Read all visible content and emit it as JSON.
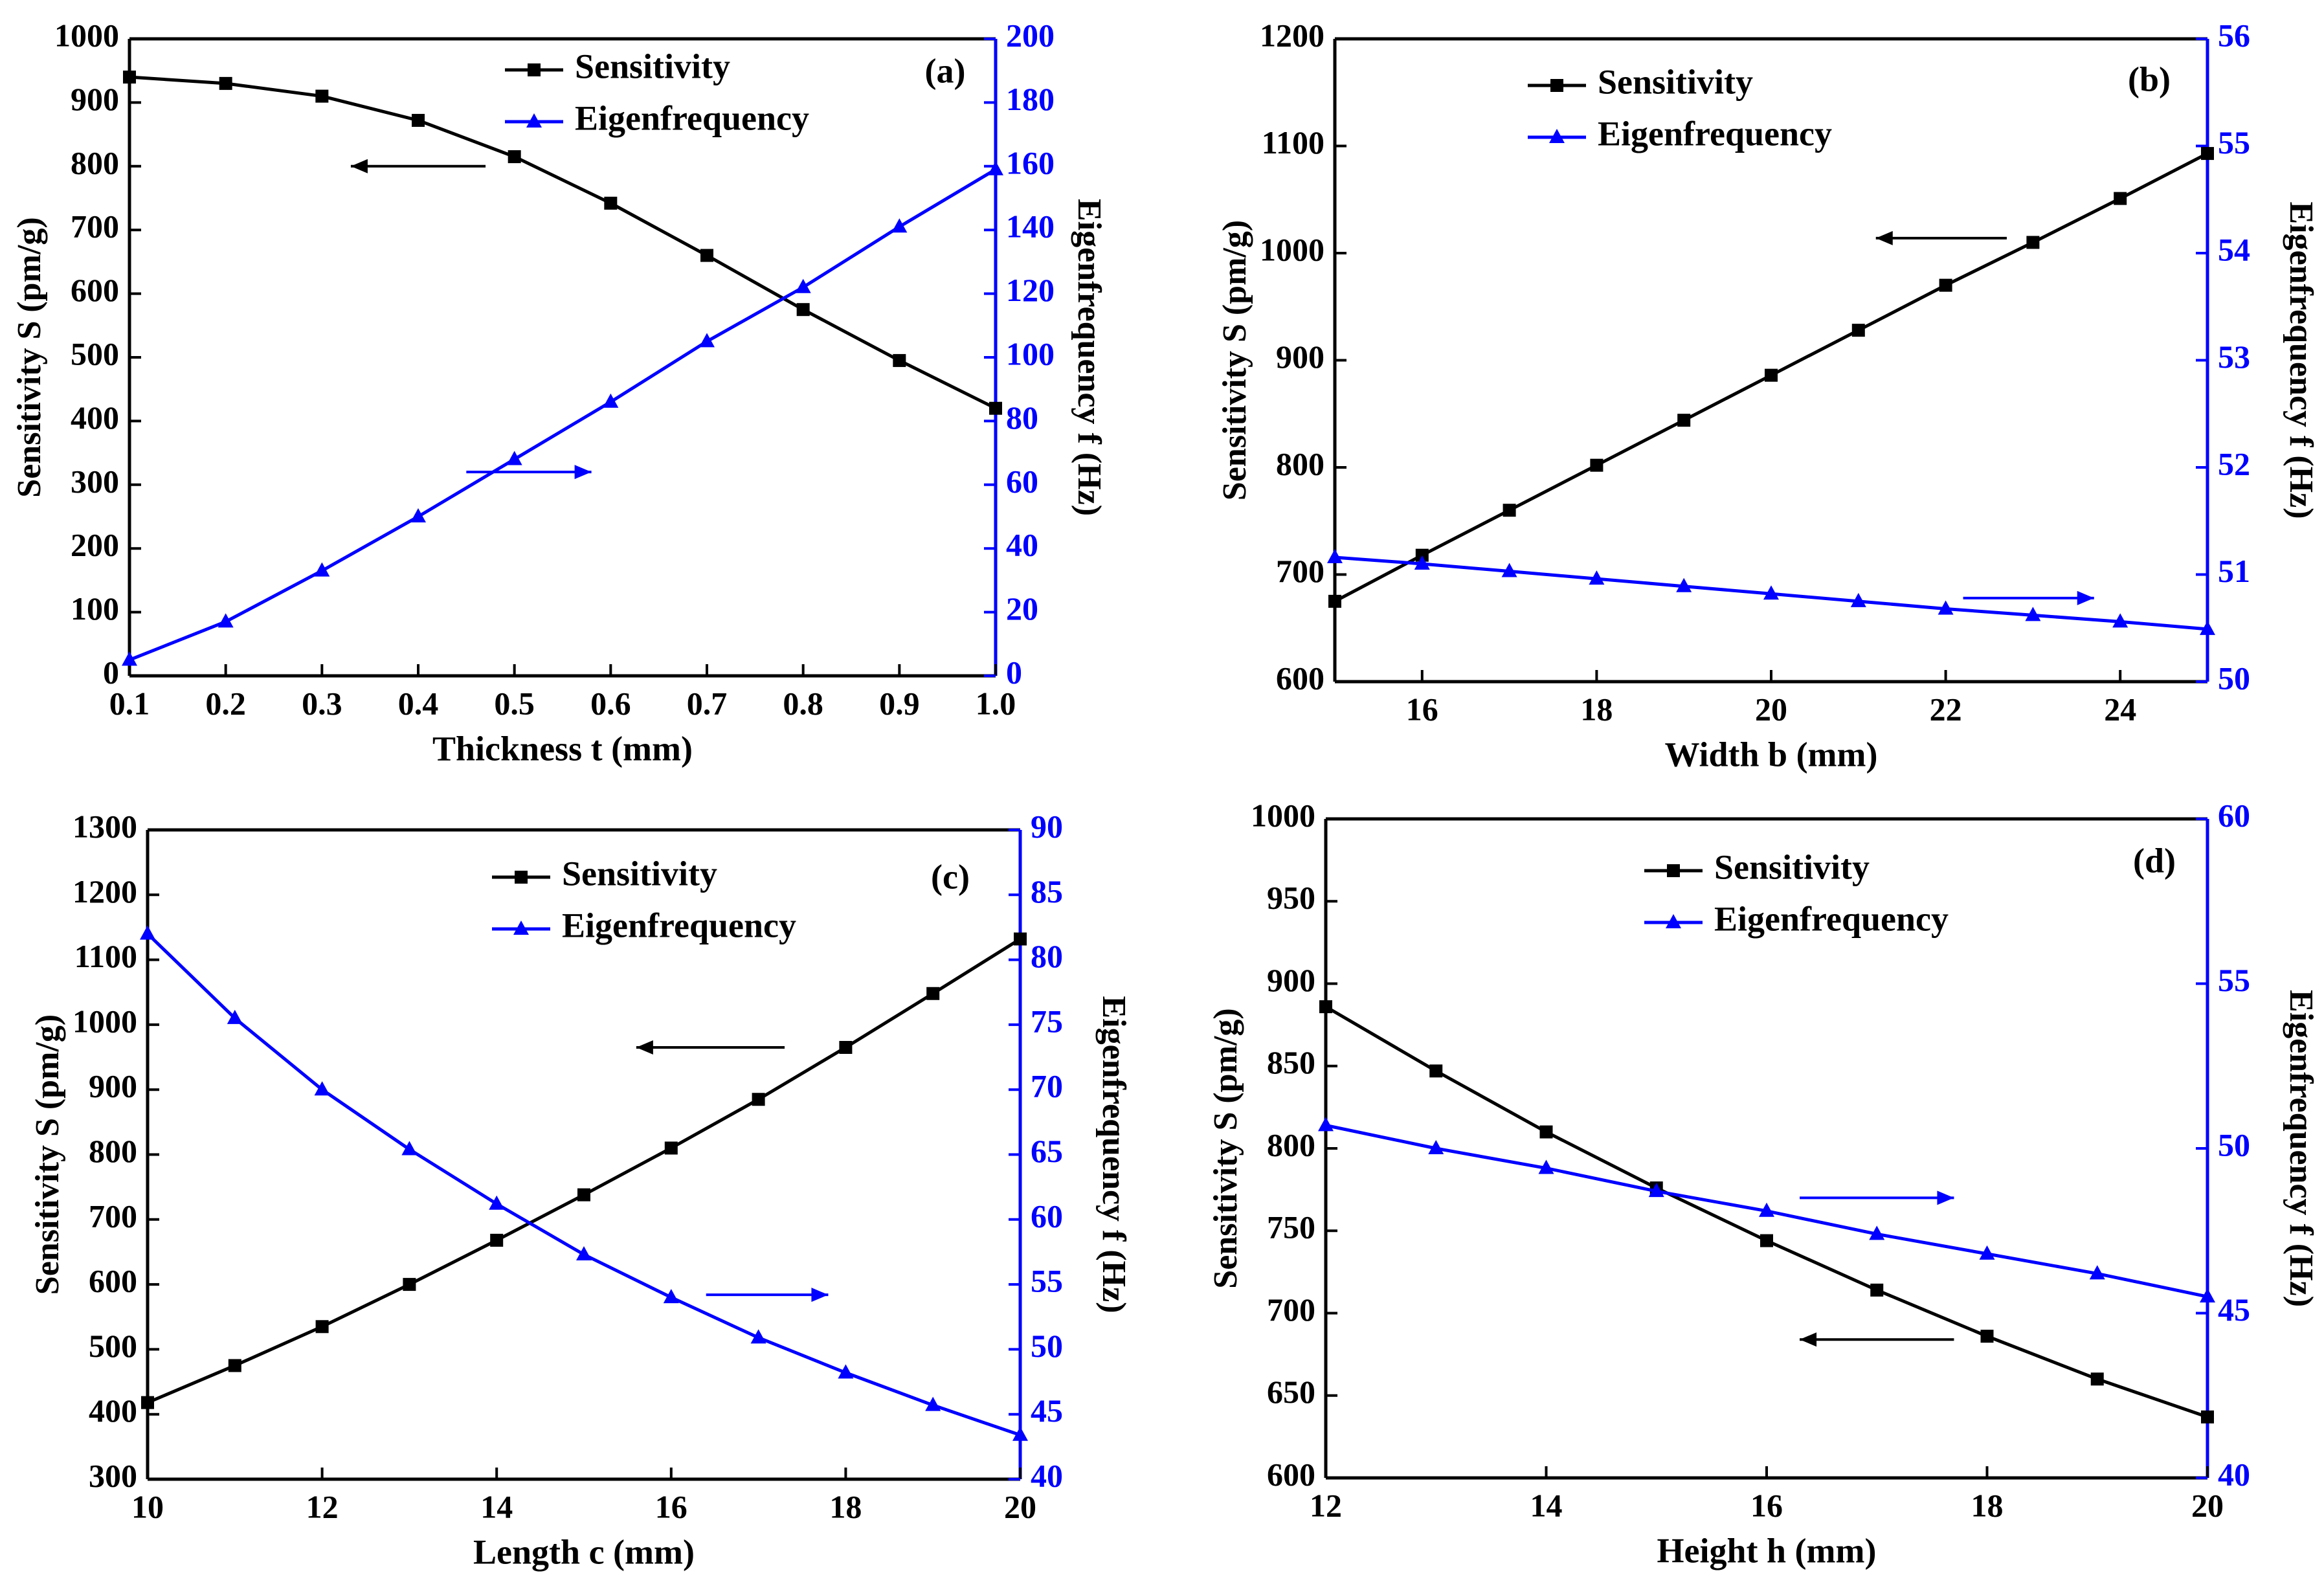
{
  "figure": {
    "panel_count": 4
  },
  "chart_data": [
    {
      "id": "a",
      "type": "line",
      "panel_label": "(a)",
      "xlabel": "Thickness t (mm)",
      "ylabel_left": "Sensitivity S (pm/g)",
      "ylabel_right": "Eigenfrequency f (Hz)",
      "xlim": [
        0.1,
        1.0
      ],
      "ylim_left": [
        0,
        1000
      ],
      "ylim_right": [
        0,
        200
      ],
      "xticks": [
        0.1,
        0.2,
        0.3,
        0.4,
        0.5,
        0.6,
        0.7,
        0.8,
        0.9,
        1.0
      ],
      "xtick_labels": [
        "0.1",
        "0.2",
        "0.3",
        "0.4",
        "0.5",
        "0.6",
        "0.7",
        "0.8",
        "0.9",
        "1.0"
      ],
      "yticks_left": [
        0,
        100,
        200,
        300,
        400,
        500,
        600,
        700,
        800,
        900,
        1000
      ],
      "yticks_right": [
        0,
        20,
        40,
        60,
        80,
        100,
        120,
        140,
        160,
        180,
        200
      ],
      "legend_position": "top-center",
      "series": [
        {
          "name": "Sensitivity",
          "axis": "left",
          "color": "#000000",
          "marker": "square",
          "x": [
            0.1,
            0.2,
            0.3,
            0.4,
            0.5,
            0.6,
            0.7,
            0.8,
            0.9,
            1.0
          ],
          "values": [
            940,
            930,
            910,
            872,
            815,
            742,
            660,
            575,
            495,
            420
          ]
        },
        {
          "name": "Eigenfrequency",
          "axis": "right",
          "color": "#0000ff",
          "marker": "triangle",
          "x": [
            0.1,
            0.2,
            0.3,
            0.4,
            0.5,
            0.6,
            0.7,
            0.8,
            0.9,
            1.0
          ],
          "values": [
            5,
            17,
            33,
            50,
            68,
            86,
            105,
            122,
            141,
            159
          ]
        }
      ],
      "annotations": [
        {
          "type": "arrow",
          "color": "#000000",
          "direction": "left",
          "x": [
            0.47,
            0.33
          ],
          "y": 800,
          "axis": "left"
        },
        {
          "type": "arrow",
          "color": "#0000ff",
          "direction": "right",
          "x": [
            0.45,
            0.58
          ],
          "y": 64,
          "axis": "right"
        }
      ]
    },
    {
      "id": "b",
      "type": "line",
      "panel_label": "(b)",
      "xlabel": "Width b (mm)",
      "ylabel_left": "Sensitivity S (pm/g)",
      "ylabel_right": "Eigenfrequency f (Hz)",
      "xlim": [
        15,
        25
      ],
      "ylim_left": [
        600,
        1200
      ],
      "ylim_right": [
        50,
        56
      ],
      "xticks": [
        16,
        18,
        20,
        22,
        24
      ],
      "xtick_labels": [
        "16",
        "18",
        "20",
        "22",
        "24"
      ],
      "yticks_left": [
        600,
        700,
        800,
        900,
        1000,
        1100,
        1200
      ],
      "yticks_right": [
        50,
        51,
        52,
        53,
        54,
        55,
        56
      ],
      "legend_position": "top-center",
      "series": [
        {
          "name": "Sensitivity",
          "axis": "left",
          "color": "#000000",
          "marker": "square",
          "x": [
            15,
            16,
            17,
            18,
            19,
            20,
            21,
            22,
            23,
            24,
            25
          ],
          "values": [
            675,
            718,
            760,
            802,
            844,
            886,
            928,
            970,
            1010,
            1051,
            1093
          ]
        },
        {
          "name": "Eigenfrequency",
          "axis": "right",
          "color": "#0000ff",
          "marker": "triangle",
          "x": [
            15,
            16,
            17,
            18,
            19,
            20,
            21,
            22,
            23,
            24,
            25
          ],
          "values": [
            51.16,
            51.1,
            51.03,
            50.96,
            50.89,
            50.82,
            50.75,
            50.68,
            50.62,
            50.56,
            50.49
          ]
        }
      ],
      "annotations": [
        {
          "type": "arrow",
          "color": "#000000",
          "direction": "left",
          "x": [
            22.7,
            21.2
          ],
          "y": 1014,
          "axis": "left"
        },
        {
          "type": "arrow",
          "color": "#0000ff",
          "direction": "right",
          "x": [
            22.2,
            23.7
          ],
          "y": 50.78,
          "axis": "right"
        }
      ]
    },
    {
      "id": "c",
      "type": "line",
      "panel_label": "(c)",
      "xlabel": "Length c (mm)",
      "ylabel_left": "Sensitivity S (pm/g)",
      "ylabel_right": "Eigenfrequency f (Hz)",
      "xlim": [
        10,
        20
      ],
      "ylim_left": [
        300,
        1300
      ],
      "ylim_right": [
        40,
        90
      ],
      "xticks": [
        10,
        12,
        14,
        16,
        18,
        20
      ],
      "xtick_labels": [
        "10",
        "12",
        "14",
        "16",
        "18",
        "20"
      ],
      "yticks_left": [
        300,
        400,
        500,
        600,
        700,
        800,
        900,
        1000,
        1100,
        1200,
        1300
      ],
      "yticks_right": [
        40,
        45,
        50,
        55,
        60,
        65,
        70,
        75,
        80,
        85,
        90
      ],
      "legend_position": "top-center",
      "series": [
        {
          "name": "Sensitivity",
          "axis": "left",
          "color": "#000000",
          "marker": "square",
          "x": [
            10,
            11,
            12,
            13,
            14,
            15,
            16,
            17,
            18,
            19,
            20
          ],
          "values": [
            418,
            475,
            535,
            600,
            668,
            738,
            810,
            885,
            965,
            1048,
            1132
          ]
        },
        {
          "name": "Eigenfrequency",
          "axis": "right",
          "color": "#0000ff",
          "marker": "triangle",
          "x": [
            10,
            11,
            12,
            13,
            14,
            15,
            16,
            17,
            18,
            19,
            20
          ],
          "values": [
            82,
            75.5,
            70,
            65.4,
            61.2,
            57.3,
            54,
            50.9,
            48.2,
            45.7,
            43.4
          ]
        }
      ],
      "annotations": [
        {
          "type": "arrow",
          "color": "#000000",
          "direction": "left",
          "x": [
            17.3,
            15.6
          ],
          "y": 965,
          "axis": "left"
        },
        {
          "type": "arrow",
          "color": "#0000ff",
          "direction": "right",
          "x": [
            16.4,
            17.8
          ],
          "y": 54.2,
          "axis": "right"
        }
      ]
    },
    {
      "id": "d",
      "type": "line",
      "panel_label": "(d)",
      "xlabel": "Height  h (mm)",
      "ylabel_left": "Sensitivity S (pm/g)",
      "ylabel_right": "Eigenfrequency f (Hz)",
      "xlim": [
        12,
        20
      ],
      "ylim_left": [
        600,
        1000
      ],
      "ylim_right": [
        40,
        60
      ],
      "xticks": [
        12,
        14,
        16,
        18,
        20
      ],
      "xtick_labels": [
        "12",
        "14",
        "16",
        "18",
        "20"
      ],
      "yticks_left": [
        600,
        650,
        700,
        750,
        800,
        850,
        900,
        950,
        1000
      ],
      "yticks_right": [
        40,
        45,
        50,
        55,
        60
      ],
      "legend_position": "top-center",
      "series": [
        {
          "name": "Sensitivity",
          "axis": "left",
          "color": "#000000",
          "marker": "square",
          "x": [
            12,
            13,
            14,
            15,
            16,
            17,
            18,
            19,
            20
          ],
          "values": [
            886,
            847,
            810,
            776,
            744,
            714,
            686,
            660,
            637
          ]
        },
        {
          "name": "Eigenfrequency",
          "axis": "right",
          "color": "#0000ff",
          "marker": "triangle",
          "x": [
            12,
            13,
            14,
            15,
            16,
            17,
            18,
            19,
            20
          ],
          "values": [
            50.7,
            50,
            49.4,
            48.7,
            48.1,
            47.4,
            46.8,
            46.2,
            45.5
          ]
        }
      ],
      "annotations": [
        {
          "type": "arrow",
          "color": "#000000",
          "direction": "left",
          "x": [
            17.7,
            16.3
          ],
          "y": 684,
          "axis": "left"
        },
        {
          "type": "arrow",
          "color": "#0000ff",
          "direction": "right",
          "x": [
            16.3,
            17.7
          ],
          "y": 48.5,
          "axis": "right"
        }
      ]
    }
  ]
}
